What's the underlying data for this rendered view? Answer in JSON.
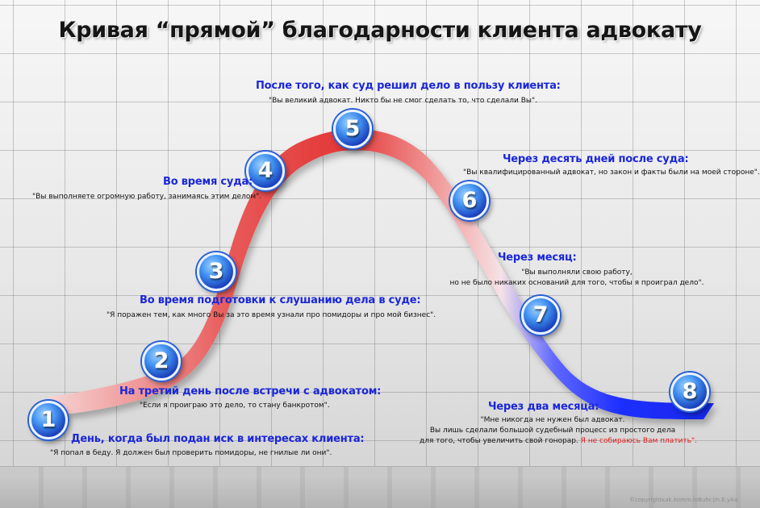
{
  "title": "Кривая “прямой” благодарности клиента адвокату",
  "colors": {
    "curve_start": "#f3c6c6",
    "curve_peak": "#e43a3a",
    "curve_mid": "#f7d3d3",
    "curve_end": "#1a2cff",
    "badge": "#2454d8",
    "heading": "#1a27d8",
    "highlight": "#e21a1a"
  },
  "icons": {
    "stage_badge": "numbered-circle-icon"
  },
  "stages": [
    {
      "number": "1",
      "heading": "День, когда был подан иск в интересах клиента:",
      "quote_lines": [
        "\"Я попал в беду. Я должен был проверить помидоры, не гнилые ли они\"."
      ]
    },
    {
      "number": "2",
      "heading": "На третий день после встречи с адвокатом:",
      "quote_lines": [
        "\"Если я проиграю это дело, то стану банкротом\"."
      ]
    },
    {
      "number": "3",
      "heading": "Во время подготовки к слушанию дела в суде:",
      "quote_lines": [
        "\"Я поражен тем, как много Вы за это время узнали про помидоры и про мой бизнес\"."
      ]
    },
    {
      "number": "4",
      "heading": "Во время суда:",
      "quote_lines": [
        "\"Вы выполняете огромную работу, занимаясь этим делом\"."
      ]
    },
    {
      "number": "5",
      "heading": "После того, как суд решил дело в пользу клиента:",
      "quote_lines": [
        "\"Вы великий адвокат. Никто бы не смог сделать то, что сделали Вы\"."
      ]
    },
    {
      "number": "6",
      "heading": "Через десять дней после суда:",
      "quote_lines": [
        "\"Вы квалифицированный адвокат, но закон и факты были на моей стороне\"."
      ]
    },
    {
      "number": "7",
      "heading": "Через месяц:",
      "quote_lines": [
        "\"Вы выполняли свою работу,",
        "но не было никаких оснований для того, чтобы я проиграл дело\"."
      ]
    },
    {
      "number": "8",
      "heading": "Через два месяца:",
      "quote_lines": [
        "\"Мне никогда не нужен был адвокат.",
        "Вы лишь сделали большой судебный процесс из простого дела",
        "для того, чтобы увеличить свой гонорар."
      ],
      "quote_highlight": "Я не собираюсь Вам платить\"."
    }
  ],
  "copyright": "©copyrightкаk.komm.loBuhr.l/n.E.yAa"
}
